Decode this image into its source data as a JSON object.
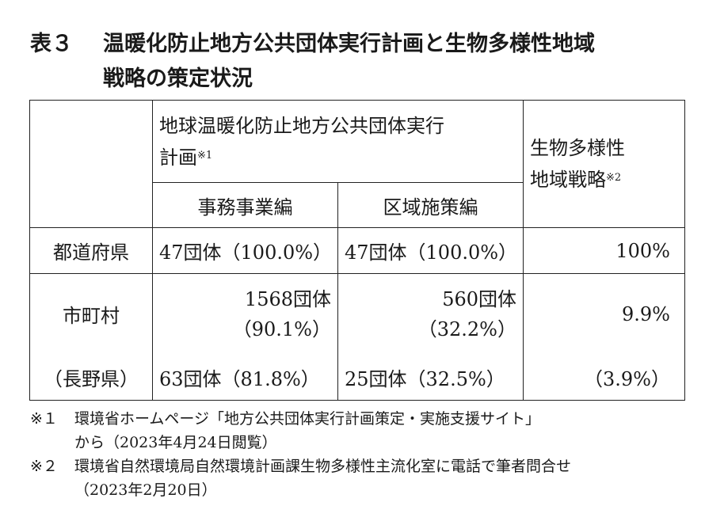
{
  "title": {
    "number": "表３",
    "line1": "温暖化防止地方公共団体実行計画と生物多様性地域",
    "line2": "戦略の策定状況"
  },
  "table": {
    "header": {
      "plan_line1": "地球温暖化防止地方公共団体実行",
      "plan_line2": "計画",
      "plan_note": "※1",
      "sub_office": "事務事業編",
      "sub_area": "区域施策編",
      "bio_line1": "生物多様性",
      "bio_line2": "地域戦略",
      "bio_note": "※2"
    },
    "rows": {
      "prefecture": {
        "label": "都道府県",
        "office": "47団体（100.0%）",
        "area": "47団体（100.0%）",
        "bio": "100%"
      },
      "municipality": {
        "label": "市町村",
        "office_count": "1568団体",
        "office_pct": "（90.1%）",
        "area_count": "560団体",
        "area_pct": "（32.2%）",
        "bio": "9.9%"
      },
      "nagano": {
        "label": "（長野県）",
        "office": "63団体（81.8%）",
        "area": "25団体（32.5%）",
        "bio": "（3.9%）"
      }
    }
  },
  "notes": [
    {
      "mark": "※１",
      "line1": "環境省ホームページ「地方公共団体実行計画策定・実施支援サイト」",
      "line2": "から（2023年4月24日閲覧）"
    },
    {
      "mark": "※２",
      "line1": "環境省自然環境局自然環境計画課生物多様性主流化室に電話で筆者問合せ",
      "line2": "（2023年2月20日）"
    }
  ]
}
